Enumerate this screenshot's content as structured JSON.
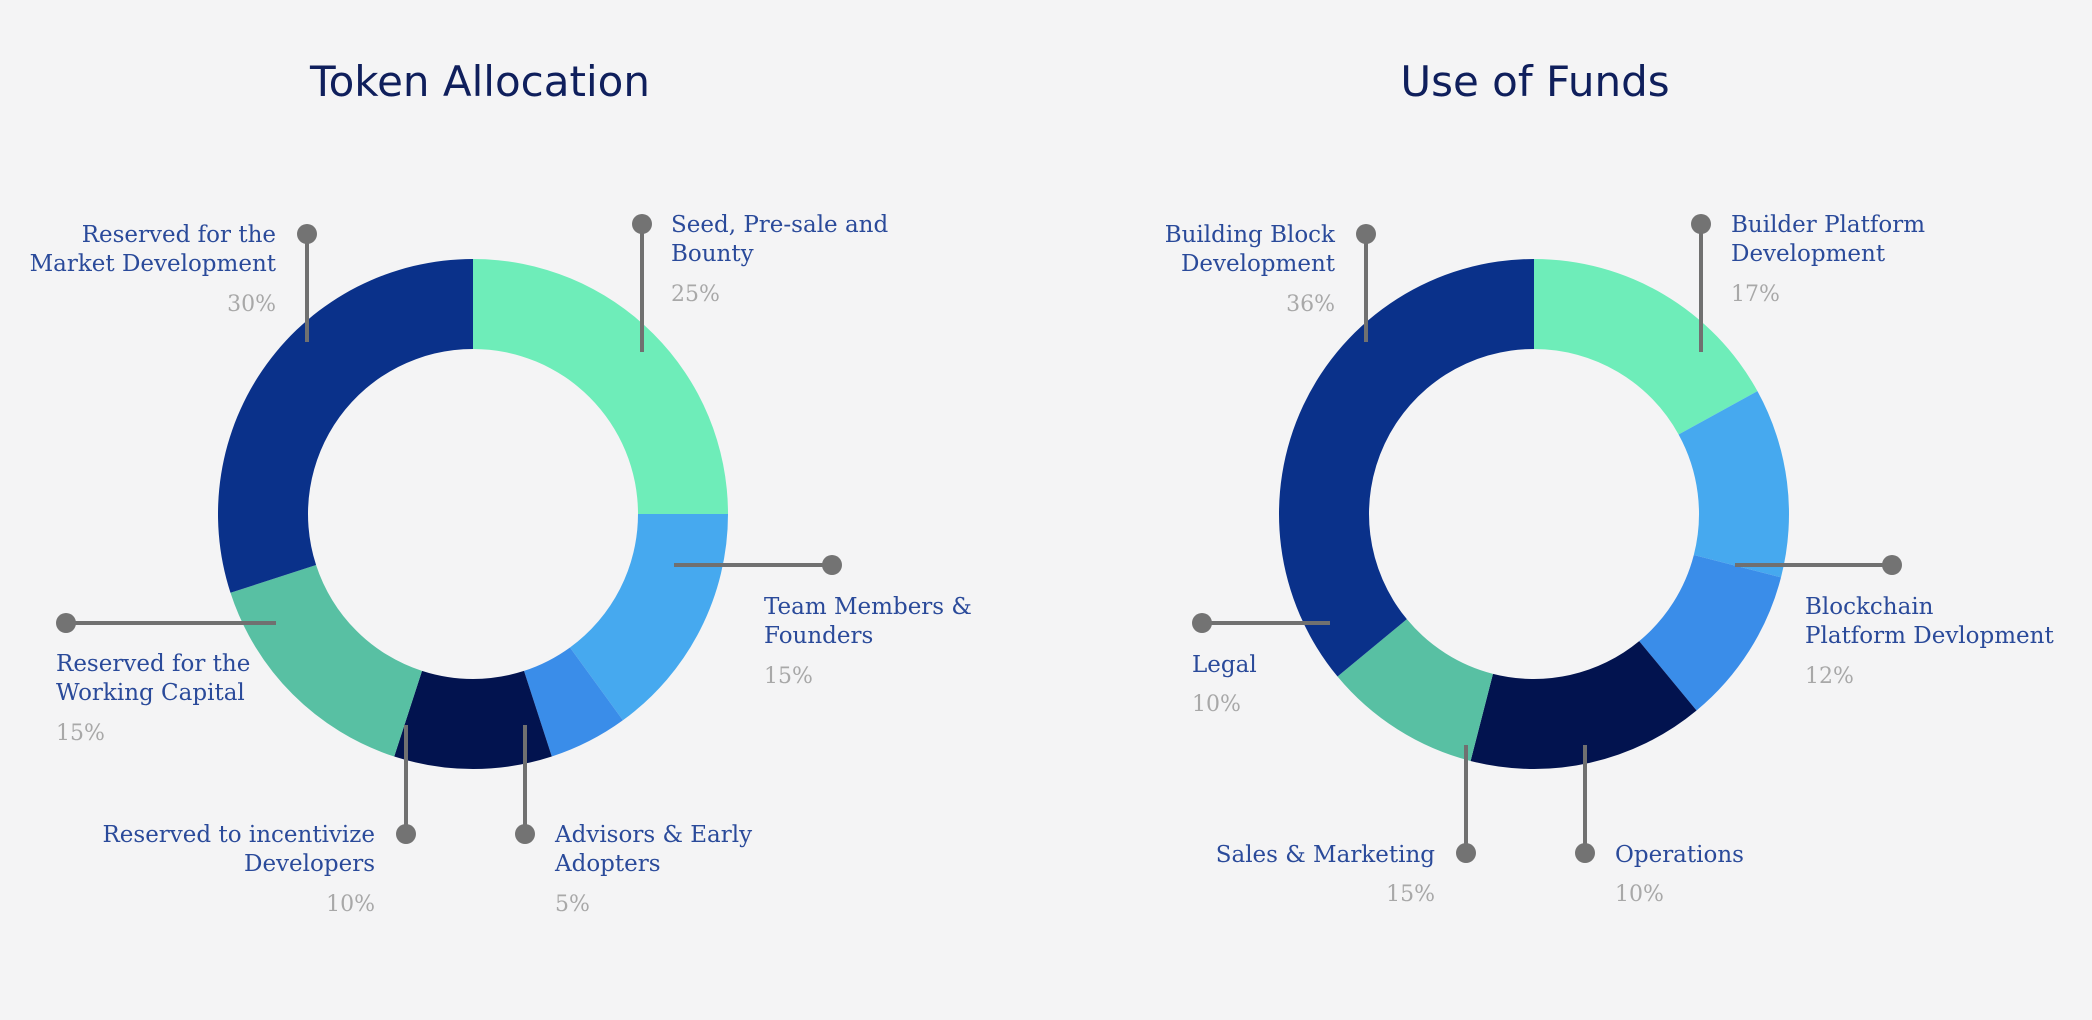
{
  "chart_data": [
    {
      "type": "donut",
      "title": "Token Allocation",
      "slices": [
        {
          "label": [
            "Seed, Pre-sale and",
            "Bounty"
          ],
          "value": 25,
          "value_label": "25%",
          "color": "#6eedb9"
        },
        {
          "label": [
            "Team Members &",
            "Founders"
          ],
          "value": 15,
          "value_label": "15%",
          "color": "#46a9ef"
        },
        {
          "label": [
            "Advisors & Early",
            "Adopters"
          ],
          "value": 5,
          "value_label": "5%",
          "color": "#3a8de9"
        },
        {
          "label": [
            "Reserved to incentivize",
            "Developers"
          ],
          "value": 10,
          "value_label": "10%",
          "color": "#02134f"
        },
        {
          "label": [
            "Reserved for the",
            "Working Capital"
          ],
          "value": 15,
          "value_label": "15%",
          "color": "#58c0a3"
        },
        {
          "label": [
            "Reserved for the",
            "Market Development"
          ],
          "value": 30,
          "value_label": "30%",
          "color": "#0a318a"
        }
      ]
    },
    {
      "type": "donut",
      "title": "Use of Funds",
      "slices": [
        {
          "label": [
            "Builder Platform",
            "Development"
          ],
          "value": 17,
          "value_label": "17%",
          "color": "#6eedb9"
        },
        {
          "label": [
            "Blockchain",
            "Platform Devlopment"
          ],
          "value": 12,
          "value_label": "12%",
          "color": "#46a9ef"
        },
        {
          "label": [
            "Operations"
          ],
          "value": 10,
          "value_label": "10%",
          "color": "#3a8de9"
        },
        {
          "label": [
            "Sales & Marketing"
          ],
          "value": 15,
          "value_label": "15%",
          "color": "#02134f"
        },
        {
          "label": [
            "Legal"
          ],
          "value": 10,
          "value_label": "10%",
          "color": "#58c0a3"
        },
        {
          "label": [
            "Building Block",
            "Development"
          ],
          "value": 36,
          "value_label": "36%",
          "color": "#0a318a"
        }
      ]
    }
  ]
}
